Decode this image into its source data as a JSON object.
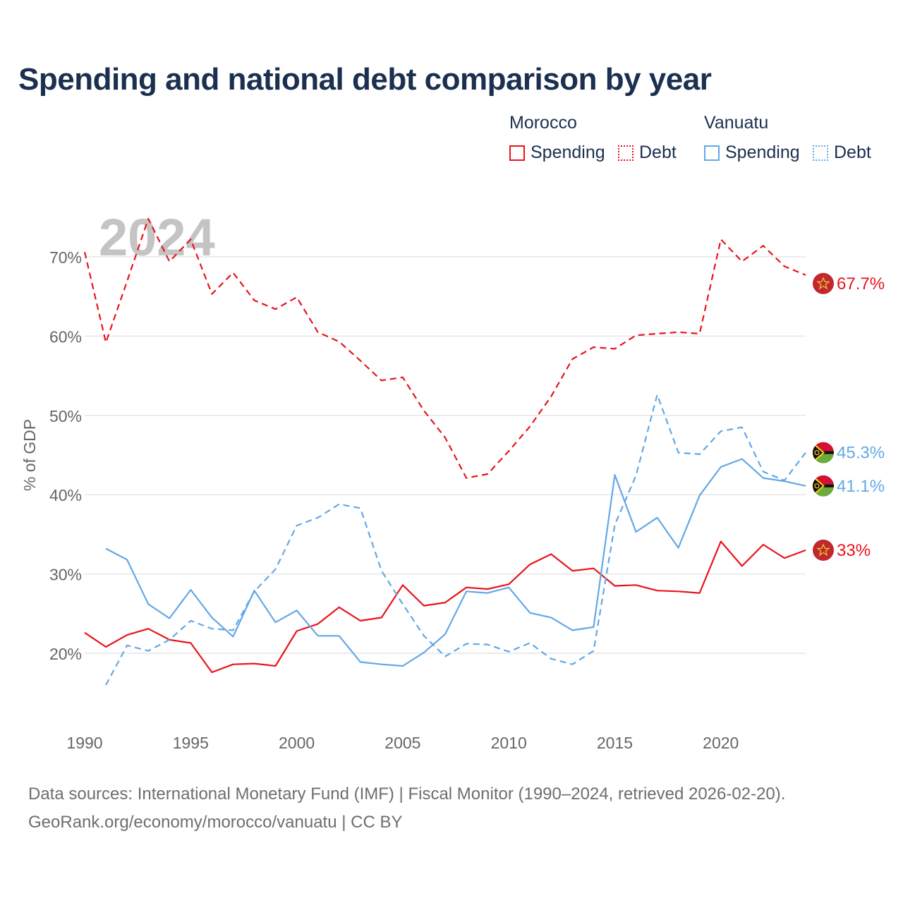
{
  "title": "Spending and national debt comparison by year",
  "legend": {
    "groups": [
      {
        "name": "Morocco",
        "items": [
          {
            "label": "Spending",
            "style": "solid"
          },
          {
            "label": "Debt",
            "style": "dashed"
          }
        ],
        "color": "#e8141c"
      },
      {
        "name": "Vanuatu",
        "items": [
          {
            "label": "Spending",
            "style": "solid"
          },
          {
            "label": "Debt",
            "style": "dashed"
          }
        ],
        "color": "#63a8e6"
      }
    ]
  },
  "colors": {
    "morocco": "#e8141c",
    "vanuatu": "#63a8e6",
    "grid": "#e6e6e6",
    "axis_text": "#666666",
    "year_watermark": "#c4c4c4"
  },
  "chart_data": {
    "type": "line",
    "title": "Spending and national debt comparison by year",
    "year_label": "2024",
    "xlabel": "",
    "ylabel": "% of GDP",
    "xlim": [
      1990,
      2024
    ],
    "ylim": [
      13,
      75
    ],
    "x_ticks": [
      1990,
      1995,
      2000,
      2005,
      2010,
      2015,
      2020
    ],
    "x_tick_labels": [
      "1990",
      "1995",
      "2000",
      "2005",
      "2010",
      "2015",
      "2020"
    ],
    "y_ticks": [
      20,
      30,
      40,
      50,
      60,
      70
    ],
    "y_tick_labels": [
      "20%",
      "30%",
      "40%",
      "50%",
      "60%",
      "70%"
    ],
    "grid": true,
    "series": [
      {
        "name": "Morocco Debt",
        "country": "morocco",
        "style": "dashed",
        "end_label": "67.7%",
        "x": [
          1990,
          1991,
          1992,
          1993,
          1994,
          1995,
          1996,
          1997,
          1998,
          1999,
          2000,
          2001,
          2002,
          2003,
          2004,
          2005,
          2006,
          2007,
          2008,
          2009,
          2010,
          2011,
          2012,
          2013,
          2014,
          2015,
          2016,
          2017,
          2018,
          2019,
          2020,
          2021,
          2022,
          2023,
          2024
        ],
        "values": [
          70.6,
          59.2,
          66.9,
          74.8,
          69.4,
          72.2,
          65.3,
          68.0,
          64.5,
          63.4,
          64.9,
          60.5,
          59.3,
          56.9,
          54.4,
          54.8,
          50.6,
          47.2,
          42.1,
          42.6,
          45.5,
          48.6,
          52.4,
          57.1,
          58.6,
          58.4,
          60.1,
          60.3,
          60.5,
          60.3,
          72.2,
          69.4,
          71.4,
          68.8,
          67.7
        ]
      },
      {
        "name": "Morocco Spending",
        "country": "morocco",
        "style": "solid",
        "end_label": "33%",
        "x": [
          1990,
          1991,
          1992,
          1993,
          1994,
          1995,
          1996,
          1997,
          1998,
          1999,
          2000,
          2001,
          2002,
          2003,
          2004,
          2005,
          2006,
          2007,
          2008,
          2009,
          2010,
          2011,
          2012,
          2013,
          2014,
          2015,
          2016,
          2017,
          2018,
          2019,
          2020,
          2021,
          2022,
          2023,
          2024
        ],
        "values": [
          22.6,
          20.8,
          22.3,
          23.1,
          21.7,
          21.3,
          17.6,
          18.6,
          18.7,
          18.4,
          22.8,
          23.7,
          25.8,
          24.1,
          24.5,
          28.6,
          26.0,
          26.4,
          28.3,
          28.1,
          28.7,
          31.2,
          32.5,
          30.4,
          30.7,
          28.5,
          28.6,
          27.9,
          27.8,
          27.6,
          34.1,
          31.0,
          33.7,
          32.0,
          33.0
        ]
      },
      {
        "name": "Vanuatu Debt",
        "country": "vanuatu",
        "style": "dashed",
        "end_label": "45.3%",
        "x": [
          1991,
          1992,
          1993,
          1994,
          1995,
          1996,
          1997,
          1998,
          1999,
          2000,
          2001,
          2002,
          2003,
          2004,
          2005,
          2006,
          2007,
          2008,
          2009,
          2010,
          2011,
          2012,
          2013,
          2014,
          2015,
          2016,
          2017,
          2018,
          2019,
          2020,
          2021,
          2022,
          2023,
          2024
        ],
        "values": [
          16.0,
          21.0,
          20.3,
          21.7,
          24.1,
          23.1,
          22.9,
          27.8,
          30.6,
          36.1,
          37.1,
          38.8,
          38.3,
          30.4,
          26.2,
          22.2,
          19.6,
          21.2,
          21.1,
          20.2,
          21.3,
          19.3,
          18.6,
          20.3,
          36.2,
          42.4,
          52.6,
          45.3,
          45.1,
          48.0,
          48.5,
          42.9,
          41.8,
          45.3
        ]
      },
      {
        "name": "Vanuatu Spending",
        "country": "vanuatu",
        "style": "solid",
        "end_label": "41.1%",
        "x": [
          1991,
          1992,
          1993,
          1994,
          1995,
          1996,
          1997,
          1998,
          1999,
          2000,
          2001,
          2002,
          2003,
          2004,
          2005,
          2006,
          2007,
          2008,
          2009,
          2010,
          2011,
          2012,
          2013,
          2014,
          2015,
          2016,
          2017,
          2018,
          2019,
          2020,
          2021,
          2022,
          2023,
          2024
        ],
        "values": [
          33.2,
          31.8,
          26.2,
          24.4,
          28.0,
          24.5,
          22.1,
          27.9,
          23.9,
          25.4,
          22.2,
          22.2,
          18.9,
          18.6,
          18.4,
          20.1,
          22.4,
          27.8,
          27.6,
          28.3,
          25.1,
          24.5,
          22.9,
          23.3,
          42.5,
          35.3,
          37.1,
          33.3,
          39.9,
          43.5,
          44.5,
          42.1,
          41.7,
          41.1
        ]
      }
    ]
  },
  "footer": {
    "line1": "Data sources: International Monetary Fund (IMF) | Fiscal Monitor (1990–2024, retrieved 2026-02-20).",
    "line2": "GeoRank.org/economy/morocco/vanuatu | CC BY"
  }
}
